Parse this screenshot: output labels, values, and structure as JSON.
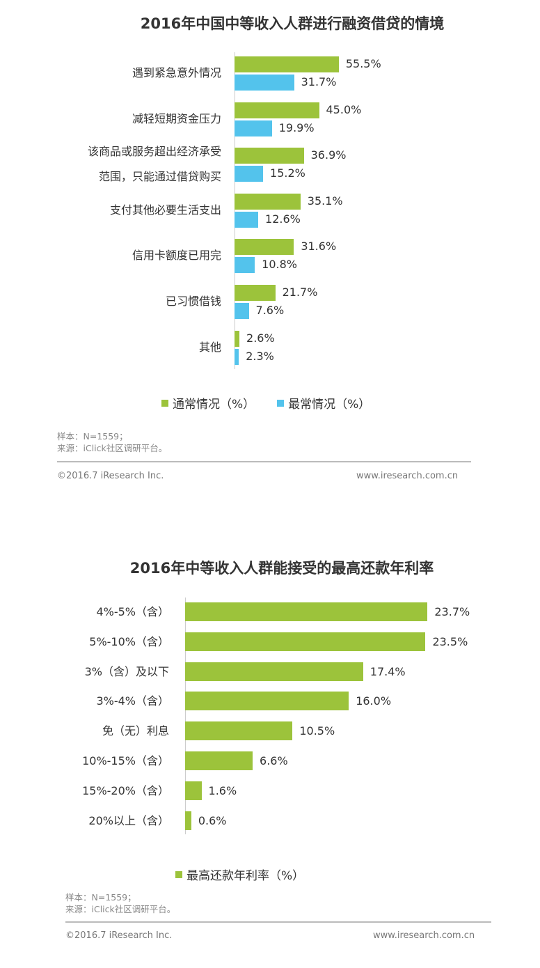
{
  "chart_data": [
    {
      "type": "bar",
      "orientation": "horizontal",
      "title": "2016年中国中等收入人群进行融资借贷的情境",
      "categories": [
        "遇到紧急意外情况",
        "减轻短期资金压力",
        "该商品或服务超出经济承受\n范围，只能通过借贷购买",
        "支付其他必要生活支出",
        "信用卡额度已用完",
        "已习惯借钱",
        "其他"
      ],
      "series": [
        {
          "name": "通常情况（%）",
          "color": "#9cc33b",
          "values": [
            55.5,
            45.0,
            36.9,
            35.1,
            31.6,
            21.7,
            2.6
          ]
        },
        {
          "name": "最常情况（%）",
          "color": "#53c3ec",
          "values": [
            31.7,
            19.9,
            15.2,
            12.6,
            10.8,
            7.6,
            2.3
          ]
        }
      ],
      "legend": "bottom",
      "grid": false
    },
    {
      "type": "bar",
      "orientation": "horizontal",
      "title": "2016年中等收入人群能接受的最高还款年利率",
      "categories": [
        "4%-5%（含）",
        "5%-10%（含）",
        "3%（含）及以下",
        "3%-4%（含）",
        "免（无）利息",
        "10%-15%（含）",
        "15%-20%（含）",
        "20%以上（含）"
      ],
      "series": [
        {
          "name": "最高还款年利率（%）",
          "color": "#9cc33b",
          "values": [
            23.7,
            23.5,
            17.4,
            16.0,
            10.5,
            6.6,
            1.6,
            0.6
          ]
        }
      ],
      "legend": "bottom",
      "grid": false
    }
  ],
  "notes": {
    "sample": "样本：N=1559；",
    "source": "来源：iClick社区调研平台。",
    "copyright": "©2016.7 iResearch Inc.",
    "website": "www.iresearch.com.cn"
  }
}
